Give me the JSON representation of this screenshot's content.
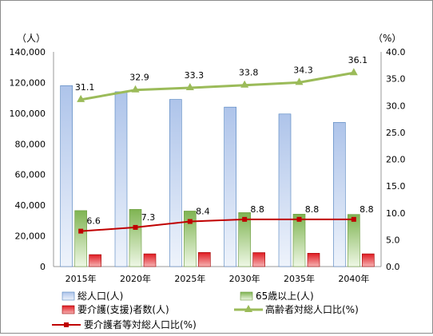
{
  "chart_data": {
    "type": "bar",
    "categories": [
      "2015年",
      "2020年",
      "2025年",
      "2030年",
      "2035年",
      "2040年"
    ],
    "y_left": {
      "unit_label": "（人）",
      "range": [
        0,
        140000
      ],
      "ticks": [
        "0",
        "20,000",
        "40,000",
        "60,000",
        "80,000",
        "100,000",
        "120,000",
        "140,000"
      ]
    },
    "y_right": {
      "unit_label": "（%）",
      "range": [
        0,
        40
      ],
      "ticks": [
        "0.0",
        "5.0",
        "10.0",
        "15.0",
        "20.0",
        "25.0",
        "30.0",
        "35.0",
        "40.0"
      ]
    },
    "bar_series": [
      {
        "name": "総人口(人)",
        "values": [
          118000,
          114000,
          109000,
          104000,
          99500,
          94000
        ],
        "color": "#b9cdec"
      },
      {
        "name": "65歳以上(人)",
        "values": [
          36500,
          37300,
          36200,
          35200,
          34200,
          34000
        ],
        "color": "#92c26a"
      },
      {
        "name": "要介護(支援)者数(人)",
        "values": [
          7800,
          8300,
          9200,
          9100,
          8700,
          8300
        ],
        "color": "#e8232a"
      }
    ],
    "line_series": [
      {
        "name": "高齢者対総人口比(%)",
        "values": [
          31.1,
          32.9,
          33.3,
          33.8,
          34.3,
          36.1
        ],
        "labels": [
          "31.1",
          "32.9",
          "33.3",
          "33.8",
          "34.3",
          "36.1"
        ],
        "color": "#9bbb59"
      },
      {
        "name": "要介護者等対総人口比(%)",
        "values": [
          6.6,
          7.3,
          8.4,
          8.8,
          8.8,
          8.8
        ],
        "labels": [
          "6.6",
          "7.3",
          "8.4",
          "8.8",
          "8.8",
          "8.8"
        ],
        "color": "#c00000"
      }
    ],
    "grid": false,
    "legend_position": "bottom"
  }
}
